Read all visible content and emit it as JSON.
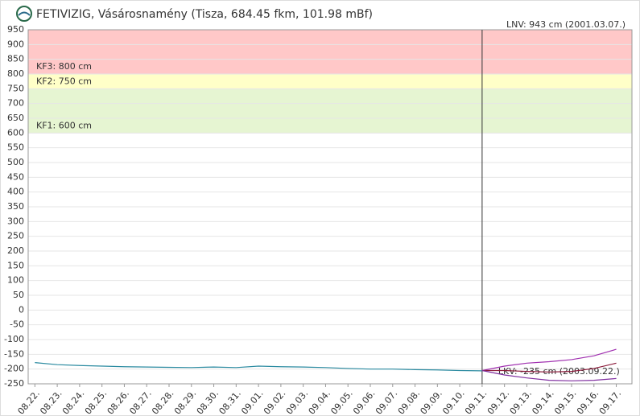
{
  "chart_data": {
    "type": "line",
    "title": "FETIVIZIG, Vásárosnamény (Tisza, 684.45 fkm, 101.98 mBf)",
    "annotations": [
      "LNV: 943 cm (2001.03.07.)",
      "LKV: -235 cm (2003.09.22.)"
    ],
    "bands": [
      {
        "label": "KF3: 800 cm",
        "from": 800,
        "to": 950,
        "color": "#ffc8c8"
      },
      {
        "label": "KF2: 750 cm",
        "from": 750,
        "to": 800,
        "color": "#ffffc8"
      },
      {
        "label": "KF1: 600 cm",
        "from": 600,
        "to": 750,
        "color": "#e6f5d2"
      }
    ],
    "categories": [
      "08.22.",
      "08.23.",
      "08.24.",
      "08.25.",
      "08.26.",
      "08.27.",
      "08.28.",
      "08.29.",
      "08.30.",
      "08.31.",
      "09.01.",
      "09.02.",
      "09.03.",
      "09.04.",
      "09.05.",
      "09.06.",
      "09.07.",
      "09.08.",
      "09.09.",
      "09.10.",
      "09.11.",
      "09.12.",
      "09.13.",
      "09.14.",
      "09.15.",
      "09.16.",
      "09.17."
    ],
    "series": [
      {
        "color": "#2a8aa0",
        "values": [
          -178,
          -185,
          -188,
          -190,
          -192,
          -193,
          -194,
          -195,
          -193,
          -195,
          -190,
          -192,
          -193,
          -195,
          -198,
          -200,
          -200,
          -202,
          -203,
          -205,
          -206,
          null,
          null,
          null,
          null,
          null,
          null
        ]
      },
      {
        "color": "#a030b0",
        "values": [
          null,
          null,
          null,
          null,
          null,
          null,
          null,
          null,
          null,
          null,
          null,
          null,
          null,
          null,
          null,
          null,
          null,
          null,
          null,
          null,
          -205,
          -190,
          -180,
          -175,
          -168,
          -155,
          -133
        ]
      },
      {
        "color": "#8b1a3a",
        "values": [
          null,
          null,
          null,
          null,
          null,
          null,
          null,
          null,
          null,
          null,
          null,
          null,
          null,
          null,
          null,
          null,
          null,
          null,
          null,
          null,
          -205,
          -205,
          -208,
          -210,
          -208,
          -198,
          -180
        ]
      },
      {
        "color": "#8030a0",
        "values": [
          null,
          null,
          null,
          null,
          null,
          null,
          null,
          null,
          null,
          null,
          null,
          null,
          null,
          null,
          null,
          null,
          null,
          null,
          null,
          null,
          -205,
          -220,
          -230,
          -238,
          -240,
          -238,
          -232
        ]
      }
    ],
    "ylim": [
      -250,
      950
    ],
    "yticks": [
      -250,
      -200,
      -150,
      -100,
      -50,
      0,
      50,
      100,
      150,
      200,
      250,
      300,
      350,
      400,
      450,
      500,
      550,
      600,
      650,
      700,
      750,
      800,
      850,
      900,
      950
    ],
    "grid": true
  }
}
